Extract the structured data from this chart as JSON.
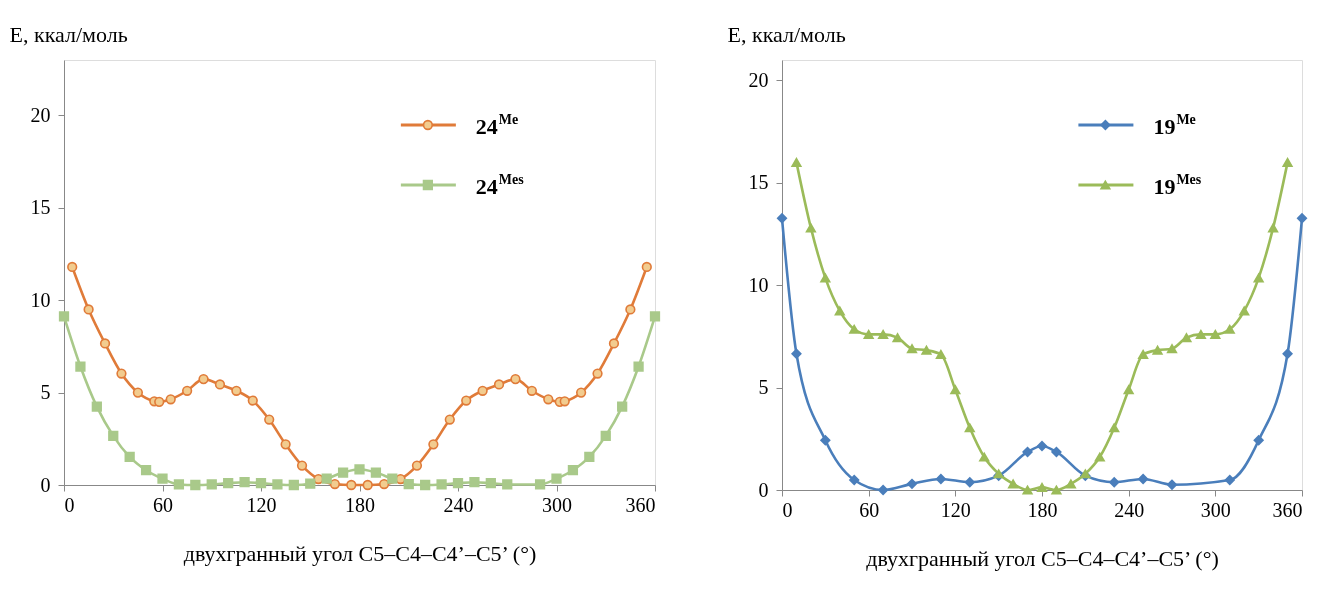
{
  "chart_data": [
    {
      "type": "line",
      "xlabel": "двухгранный угол C5–C4–C4’–C5’ (°)",
      "ylabel": "E, ккал/моль",
      "xlim": [
        0,
        360
      ],
      "xticks": [
        0,
        60,
        120,
        180,
        240,
        300,
        360
      ],
      "ylim": [
        0,
        23
      ],
      "yticks": [
        0,
        5,
        10,
        15,
        20
      ],
      "legend": "top right",
      "series": [
        {
          "name": "24$^{Me}$",
          "color": "#e07b39",
          "marker": "circle",
          "x": [
            5,
            15,
            25,
            35,
            45,
            55,
            58,
            65,
            75,
            85,
            95,
            105,
            115,
            125,
            135,
            145,
            155,
            165,
            175,
            185,
            195,
            205,
            215,
            225,
            235,
            245,
            255,
            265,
            275,
            285,
            295,
            302,
            305,
            315,
            325,
            335,
            345,
            355
          ],
          "values": [
            11.8,
            9.5,
            7.66,
            6.03,
            5.0,
            4.53,
            4.5,
            4.64,
            5.1,
            5.73,
            5.44,
            5.1,
            4.57,
            3.54,
            2.2,
            1.05,
            0.32,
            0.05,
            0.0,
            0.0,
            0.05,
            0.32,
            1.05,
            2.2,
            3.54,
            4.57,
            5.1,
            5.44,
            5.73,
            5.1,
            4.64,
            4.5,
            4.53,
            5.0,
            6.03,
            7.66,
            9.5,
            11.8
          ]
        },
        {
          "name": "24$^{Mes}$",
          "color": "#a9c98a",
          "marker": "square",
          "x": [
            0,
            10,
            20,
            30,
            40,
            50,
            60,
            70,
            80,
            90,
            100,
            110,
            120,
            130,
            140,
            150,
            160,
            170,
            180,
            190,
            200,
            210,
            220,
            230,
            240,
            250,
            260,
            270,
            290,
            300,
            310,
            320,
            330,
            340,
            350,
            360
          ],
          "values": [
            9.12,
            6.41,
            4.24,
            2.66,
            1.52,
            0.8,
            0.34,
            0.03,
            0.0,
            0.03,
            0.1,
            0.15,
            0.1,
            0.03,
            0.0,
            0.07,
            0.34,
            0.67,
            0.85,
            0.67,
            0.34,
            0.05,
            0.0,
            0.03,
            0.1,
            0.15,
            0.1,
            0.03,
            0.03,
            0.34,
            0.8,
            1.52,
            2.66,
            4.24,
            6.41,
            9.12
          ]
        }
      ]
    },
    {
      "type": "line",
      "xlabel": "двухгранный угол C5–C4–C4’–C5’ (°)",
      "ylabel": "E, ккал/моль",
      "xlim": [
        0,
        360
      ],
      "xticks": [
        0,
        60,
        120,
        180,
        240,
        300,
        360
      ],
      "ylim": [
        0,
        21
      ],
      "yticks": [
        0,
        5,
        10,
        15,
        20
      ],
      "legend": "top right",
      "series": [
        {
          "name": "19$^{Me}$",
          "color": "#4a7ebb",
          "marker": "diamond",
          "x": [
            0,
            10,
            30,
            50,
            70,
            90,
            110,
            130,
            150,
            170,
            180,
            190,
            210,
            230,
            250,
            270,
            310,
            330,
            350,
            360
          ],
          "values": [
            13.27,
            6.65,
            2.43,
            0.49,
            0.0,
            0.3,
            0.54,
            0.38,
            0.7,
            1.86,
            2.15,
            1.86,
            0.7,
            0.38,
            0.54,
            0.26,
            0.49,
            2.43,
            6.65,
            13.27
          ]
        },
        {
          "name": "19$^{Mes}$",
          "color": "#9bbb59",
          "marker": "triangle",
          "x": [
            10,
            20,
            30,
            40,
            50,
            60,
            70,
            80,
            90,
            100,
            110,
            120,
            130,
            140,
            150,
            160,
            170,
            180,
            190,
            200,
            210,
            220,
            230,
            240,
            250,
            260,
            270,
            280,
            290,
            300,
            310,
            320,
            330,
            340,
            350
          ],
          "values": [
            16.0,
            12.8,
            10.36,
            8.75,
            7.85,
            7.6,
            7.6,
            7.44,
            6.9,
            6.83,
            6.62,
            4.9,
            3.04,
            1.61,
            0.79,
            0.3,
            0.0,
            0.13,
            0.0,
            0.3,
            0.79,
            1.61,
            3.04,
            4.9,
            6.62,
            6.83,
            6.9,
            7.44,
            7.6,
            7.6,
            7.85,
            8.75,
            10.36,
            12.8,
            16.0
          ]
        }
      ]
    }
  ]
}
